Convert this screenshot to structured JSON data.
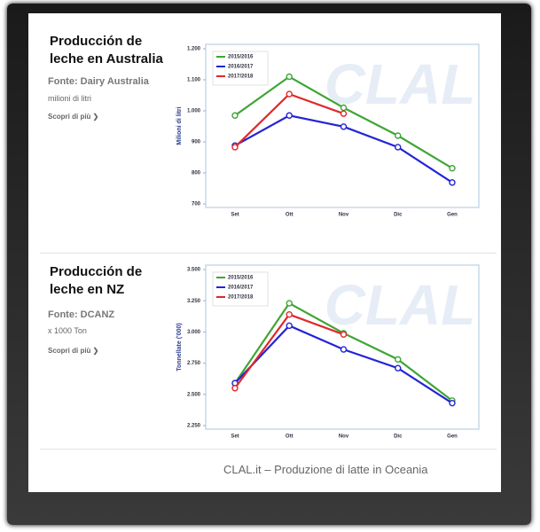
{
  "chart_data": [
    {
      "type": "line",
      "title": "Producción de leche en Australia",
      "source": "Fonte: Dairy Australia",
      "unit": "milioni di litri",
      "link": "Scopri di più ❯",
      "watermark": "CLAL",
      "ylabel": "Milioni di litri",
      "categories": [
        "Set",
        "Ott",
        "Nov",
        "Dic",
        "Gen"
      ],
      "ylim": [
        700,
        1200
      ],
      "yticks": [
        700,
        800,
        900,
        {
          "value": 1000,
          "label": "1.000"
        },
        {
          "value": 1100,
          "label": "1.100"
        },
        {
          "value": 1200,
          "label": "1.200"
        }
      ],
      "legend": "upper left",
      "series": [
        {
          "name": "2015/2016",
          "color": "#3fa535",
          "values": [
            985,
            1110,
            1010,
            920,
            815
          ]
        },
        {
          "name": "2016/2017",
          "color": "#2323d8",
          "values": [
            888,
            985,
            949,
            883,
            769
          ]
        },
        {
          "name": "2017/2018",
          "color": "#e0282a",
          "values": [
            883,
            1054,
            991,
            null,
            null
          ]
        }
      ]
    },
    {
      "type": "line",
      "title": "Producción de leche en NZ",
      "source": "Fonte: DCANZ",
      "unit": "x 1000 Ton",
      "link": "Scopri di più ❯",
      "watermark": "CLAL",
      "ylabel": "Tonnellate ('000)",
      "categories": [
        "Set",
        "Ott",
        "Nov",
        "Dic",
        "Gen"
      ],
      "ylim": [
        2250,
        3500
      ],
      "yticks": [
        {
          "value": 2250,
          "label": "2.250"
        },
        {
          "value": 2500,
          "label": "2.500"
        },
        {
          "value": 2750,
          "label": "2.750"
        },
        {
          "value": 3000,
          "label": "3.000"
        },
        {
          "value": 3250,
          "label": "3.250"
        },
        {
          "value": 3500,
          "label": "3.500"
        }
      ],
      "legend": "upper left",
      "series": [
        {
          "name": "2015/2016",
          "color": "#3fa535",
          "values": [
            2590,
            3230,
            2990,
            2780,
            2450
          ]
        },
        {
          "name": "2016/2017",
          "color": "#2323d8",
          "values": [
            2590,
            3050,
            2860,
            2710,
            2430
          ]
        },
        {
          "name": "2017/2018",
          "color": "#e0282a",
          "values": [
            2550,
            3140,
            2980,
            null,
            null
          ]
        }
      ]
    }
  ],
  "caption": "CLAL.it – Produzione di latte in Oceania"
}
